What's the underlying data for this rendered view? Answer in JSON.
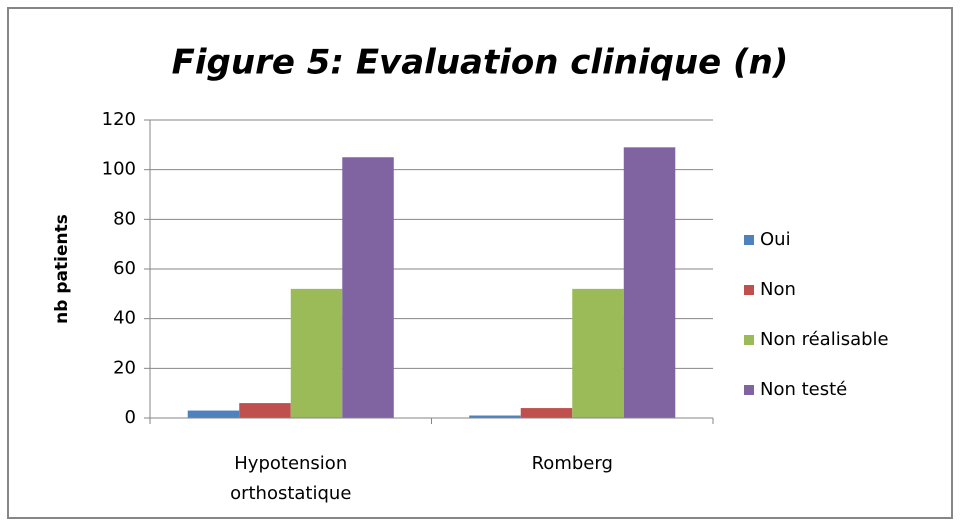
{
  "chart_data": {
    "type": "bar",
    "title": "Figure 5: Evaluation clinique (n)",
    "y_label": "nb patients",
    "categories": [
      "Hypotension orthostatique",
      "Romberg"
    ],
    "series": [
      {
        "name": "Oui",
        "color": "#4f81bd",
        "values": [
          3,
          1
        ]
      },
      {
        "name": "Non",
        "color": "#c0504d",
        "values": [
          6,
          4
        ]
      },
      {
        "name": "Non réalisable",
        "color": "#9bbb59",
        "values": [
          52,
          52
        ]
      },
      {
        "name": "Non testé",
        "color": "#8064a2",
        "values": [
          105,
          109
        ]
      }
    ],
    "ylim": [
      0,
      120
    ],
    "yticks": [
      0,
      20,
      40,
      60,
      80,
      100,
      120
    ],
    "grid": true,
    "legend": "right"
  }
}
